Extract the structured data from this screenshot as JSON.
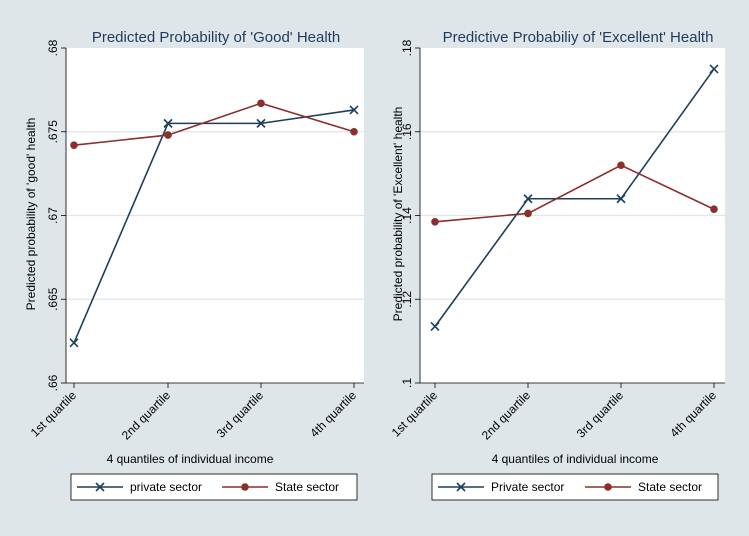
{
  "colors": {
    "background": "#dfe6ea",
    "plot_bg": "#ffffff",
    "grid": "#dfe6ea",
    "title": "#1f3a5a",
    "private": "#1d3f5e",
    "state": "#8b2f2c"
  },
  "chart_data": [
    {
      "type": "line",
      "title": "Predicted Probability of 'Good' Health",
      "xlabel": "4 quantiles of individual income",
      "ylabel": "Predicted probability of 'good' health",
      "categories": [
        "1st quartile",
        "2nd quartile",
        "3rd quartile",
        "4th quartile"
      ],
      "ylim": [
        0.66,
        0.68
      ],
      "yticks": [
        ".66",
        ".665",
        ".67",
        ".675",
        ".68"
      ],
      "ytick_values": [
        0.66,
        0.665,
        0.67,
        0.675,
        0.68
      ],
      "grid": true,
      "legend_position": "bottom",
      "series": [
        {
          "name": "private sector",
          "marker": "x",
          "values": [
            0.6624,
            0.6755,
            0.6755,
            0.6763
          ]
        },
        {
          "name": "State sector",
          "marker": "circle",
          "values": [
            0.6742,
            0.6748,
            0.6767,
            0.675
          ]
        }
      ]
    },
    {
      "type": "line",
      "title": "Predictive Probabiliy of 'Excellent'  Health",
      "xlabel": "4 quantiles of individual income",
      "ylabel": "Predicted probability of 'Excellent' health",
      "categories": [
        "1st quartile",
        "2nd quartile",
        "3rd quartile",
        "4th quartile"
      ],
      "ylim": [
        0.1,
        0.18
      ],
      "yticks": [
        ".1",
        ".12",
        ".14",
        ".16",
        ".18"
      ],
      "ytick_values": [
        0.1,
        0.12,
        0.14,
        0.16,
        0.18
      ],
      "grid": true,
      "legend_position": "bottom",
      "series": [
        {
          "name": "Private sector",
          "marker": "x",
          "values": [
            0.1135,
            0.144,
            0.144,
            0.175
          ]
        },
        {
          "name": "State sector",
          "marker": "circle",
          "values": [
            0.1385,
            0.1405,
            0.152,
            0.1415
          ]
        }
      ]
    }
  ]
}
